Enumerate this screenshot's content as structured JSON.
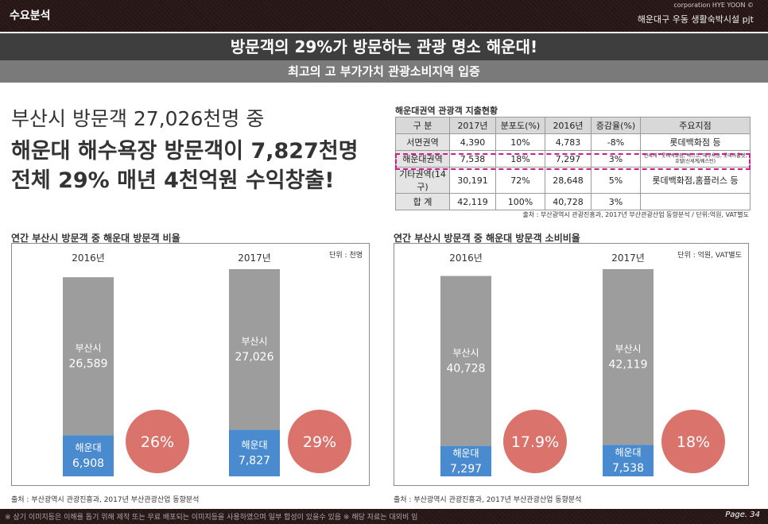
{
  "header": {
    "section": "수요분석",
    "corporation": "corporation HYE YOON ©",
    "project": "해운대구 우동 생활숙박시설 pjt"
  },
  "headline": "방문객의 29%가 방문하는 관광 명소 해운대!",
  "subheadline": "최고의 고 부가가치 관광소비지역 입증",
  "lead": {
    "line1": "부산시 방문객 27,026천명 중",
    "line2": "해운대 해수욕장 방문객이 7,827천명",
    "line3": "전체 29% 매년 4천억원 수익창출!"
  },
  "expense_table": {
    "title": "해운대권역 관광객 지출현황",
    "headers": [
      "구 분",
      "2017년",
      "분포도(%)",
      "2016년",
      "증감율(%)",
      "주요지점"
    ],
    "rows": [
      [
        "서면권역",
        "4,390",
        "10%",
        "4,783",
        "-8%",
        "롯데백화점 등"
      ],
      [
        "해운대권역",
        "7,538",
        "18%",
        "7,297",
        "3%",
        "신세계 · 롯데백화점, 벡스코, 해수욕장, 롯데아울렛, 호텔(신세계/웨스틴)"
      ],
      [
        "기타권역(14구)",
        "30,191",
        "72%",
        "28,648",
        "5%",
        "롯데백화점,홈플러스 등"
      ],
      [
        "합 계",
        "42,119",
        "100%",
        "40,728",
        "3%",
        ""
      ]
    ],
    "source": "출처 : 부산광역시 관광진흥과, 2017년 부산관광산업 동향분석 / 단위:억원, VAT별도"
  },
  "footer": {
    "disclaimer": "※ 상기 이미지등은 이해를 돕기 위해 제작 또는 무료 배포되는 이미지등을 사용하였으며 일부 합성이 있을수 있음 ※ 해당 자료는 대외비 임",
    "page": "Page. 34"
  },
  "chart_data": [
    {
      "type": "bar",
      "stacked": true,
      "title": "연간 부산시 방문객 중 해운대 방문객 비율",
      "unit": "단위 : 천명",
      "categories": [
        "2016년",
        "2017년"
      ],
      "series": [
        {
          "name": "해운대",
          "values": [
            6908,
            7827
          ],
          "labels": [
            "6,908",
            "7,827"
          ],
          "color": "#4a8bd0"
        },
        {
          "name": "부산시",
          "values": [
            26589,
            27026
          ],
          "labels": [
            "26,589",
            "27,026"
          ],
          "color": "#9d9d9d"
        }
      ],
      "percent_labels": [
        "26%",
        "29%"
      ],
      "circle_color": "#d9736c",
      "source": "출처 : 부산광역시 관광진흥과, 2017년 부산관광산업 동향분석"
    },
    {
      "type": "bar",
      "stacked": true,
      "title": "연간 부산시 방문객 중 해운대 방문객 소비비율",
      "unit": "단위 : 억원, VAT별도",
      "categories": [
        "2016년",
        "2017년"
      ],
      "series": [
        {
          "name": "해운대",
          "values": [
            7297,
            7538
          ],
          "labels": [
            "7,297",
            "7,538"
          ],
          "color": "#4a8bd0"
        },
        {
          "name": "부산시",
          "values": [
            40728,
            42119
          ],
          "labels": [
            "40,728",
            "42,119"
          ],
          "color": "#9d9d9d"
        }
      ],
      "percent_labels": [
        "17.9%",
        "18%"
      ],
      "circle_color": "#d9736c",
      "source": "출처 : 부산광역시 관광진흥과, 2017년 부산관광산업 동향분석"
    }
  ]
}
